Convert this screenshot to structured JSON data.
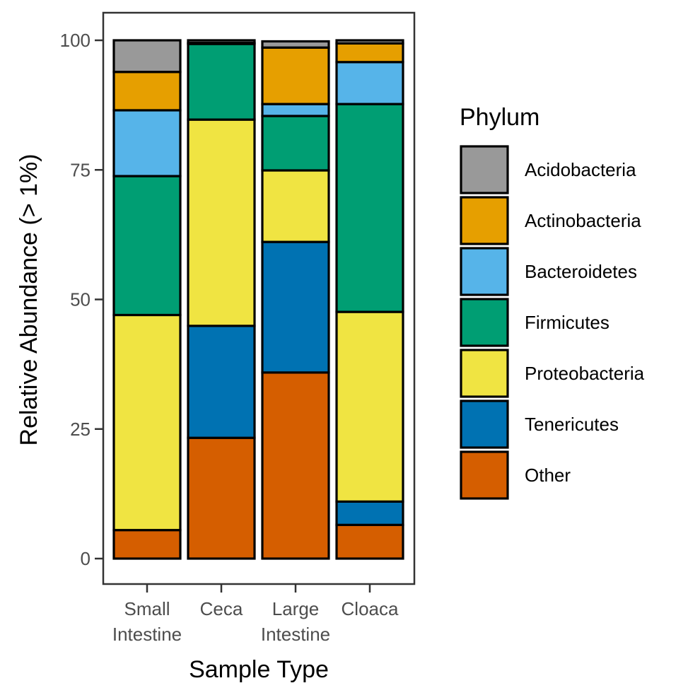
{
  "chart_data": {
    "type": "bar",
    "stacked": true,
    "title": "",
    "xlabel": "Sample Type",
    "ylabel": "Relative Abundance (> 1%)",
    "ylim": [
      0,
      100
    ],
    "yticks": [
      "0",
      "25",
      "50",
      "75",
      "100"
    ],
    "grid": false,
    "legend_position": "right",
    "legend_title": "Phylum",
    "categories": [
      [
        "Small",
        "Intestine"
      ],
      [
        "Ceca"
      ],
      [
        "Large",
        "Intestine"
      ],
      [
        "Cloaca"
      ]
    ],
    "series": [
      {
        "name": "Other",
        "color": "#D55E00",
        "values": [
          5.5,
          23.3,
          35.9,
          6.5
        ]
      },
      {
        "name": "Tenericutes",
        "color": "#0072B2",
        "values": [
          0.0,
          21.6,
          25.2,
          4.5
        ]
      },
      {
        "name": "Proteobacteria",
        "color": "#F0E442",
        "values": [
          41.5,
          39.8,
          13.8,
          36.6
        ]
      },
      {
        "name": "Firmicutes",
        "color": "#009E73",
        "values": [
          26.8,
          14.6,
          10.5,
          40.1
        ]
      },
      {
        "name": "Bacteroidetes",
        "color": "#56B4E9",
        "values": [
          12.7,
          0.0,
          2.3,
          8.1
        ]
      },
      {
        "name": "Actinobacteria",
        "color": "#E69F00",
        "values": [
          7.4,
          0.2,
          10.9,
          3.6
        ]
      },
      {
        "name": "Acidobacteria",
        "color": "#999999",
        "values": [
          6.1,
          0.5,
          1.2,
          0.6
        ]
      }
    ],
    "legend_order": [
      "Acidobacteria",
      "Actinobacteria",
      "Bacteroidetes",
      "Firmicutes",
      "Proteobacteria",
      "Tenericutes",
      "Other"
    ]
  }
}
